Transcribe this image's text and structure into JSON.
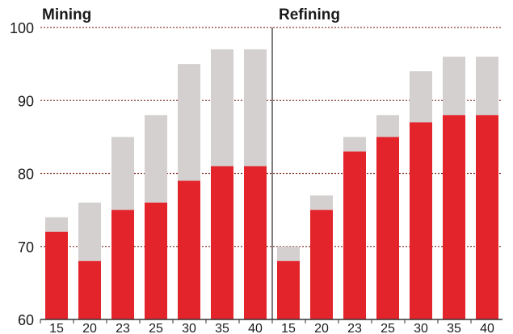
{
  "chart_data": [
    {
      "type": "bar",
      "title": "Mining",
      "categories": [
        "15",
        "20",
        "23",
        "25",
        "30",
        "35",
        "40"
      ],
      "series": [
        {
          "values": [
            72,
            68,
            75,
            76,
            79,
            81,
            81
          ]
        },
        {
          "values": [
            74,
            76,
            85,
            88,
            95,
            97,
            97
          ]
        }
      ],
      "ylim": [
        60,
        100
      ],
      "yticks": [
        "60",
        "70",
        "80",
        "90",
        "100"
      ],
      "grid": true,
      "colors": {
        "lower": "#e3242b",
        "upper": "#d3d0cf",
        "grid": "#8a3a32"
      }
    },
    {
      "type": "bar",
      "title": "Refining",
      "categories": [
        "15",
        "20",
        "23",
        "25",
        "30",
        "35",
        "40"
      ],
      "series": [
        {
          "values": [
            68,
            75,
            83,
            85,
            87,
            88,
            88
          ]
        },
        {
          "values": [
            70,
            77,
            85,
            88,
            94,
            96,
            96
          ]
        }
      ],
      "ylim": [
        60,
        100
      ],
      "grid": true,
      "colors": {
        "lower": "#e3242b",
        "upper": "#d3d0cf",
        "grid": "#8a3a32"
      }
    }
  ]
}
